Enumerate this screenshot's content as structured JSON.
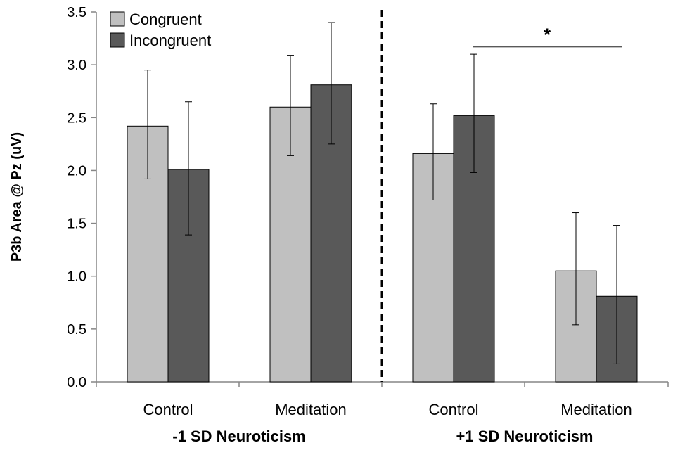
{
  "chart_data": {
    "type": "bar",
    "ylabel": "P3b Area @ Pz (uV)",
    "ylim": [
      0,
      3.5
    ],
    "yticks": [
      "0.0",
      "0.5",
      "1.0",
      "1.5",
      "2.0",
      "2.5",
      "3.0",
      "3.5"
    ],
    "ytick_values": [
      0,
      0.5,
      1.0,
      1.5,
      2.0,
      2.5,
      3.0,
      3.5
    ],
    "categories": [
      "Control",
      "Meditation",
      "Control",
      "Meditation"
    ],
    "groups": [
      "-1 SD Neuroticism",
      "+1 SD Neuroticism"
    ],
    "legend_position": "top-left",
    "series": [
      {
        "name": "Congruent",
        "color": "#c0c0c0",
        "values": [
          2.42,
          2.6,
          2.16,
          1.05
        ],
        "error_low": [
          1.92,
          2.14,
          1.72,
          0.54
        ],
        "error_high": [
          2.95,
          3.09,
          2.63,
          1.6
        ]
      },
      {
        "name": "Incongruent",
        "color": "#595959",
        "values": [
          2.01,
          2.81,
          2.52,
          0.81
        ],
        "error_low": [
          1.39,
          2.25,
          1.98,
          0.17
        ],
        "error_high": [
          2.65,
          3.4,
          3.1,
          1.48
        ]
      }
    ],
    "significance": {
      "label": "*",
      "level": 3.17
    }
  }
}
